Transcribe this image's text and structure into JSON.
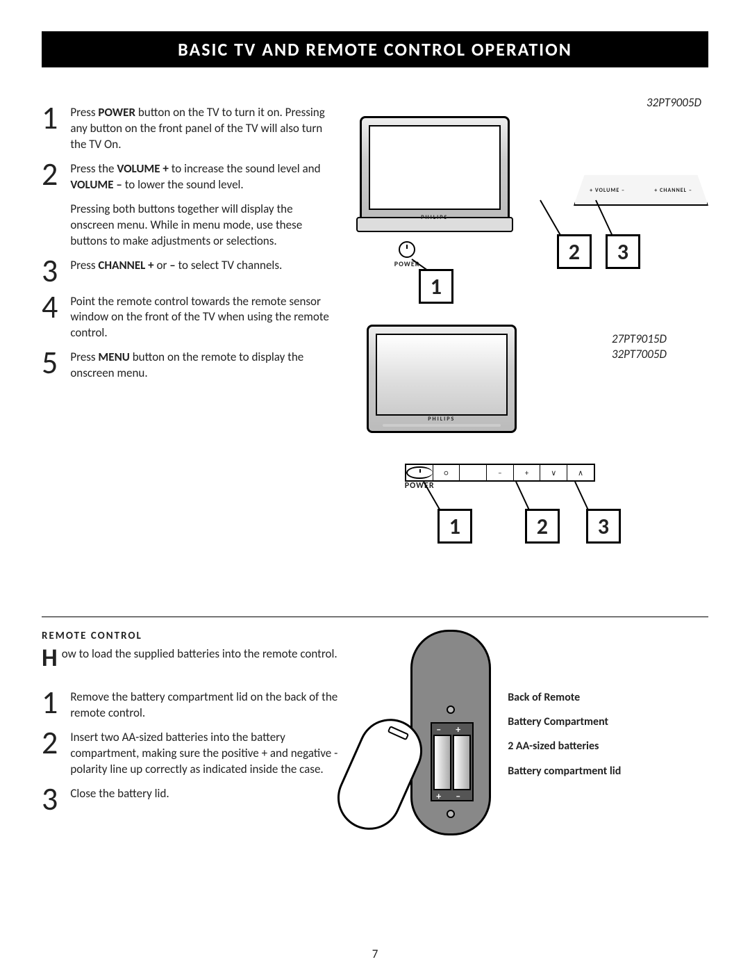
{
  "title": "BASIC TV AND REMOTE CONTROL OPERATION",
  "steps": [
    {
      "n": "1",
      "html": "Press <b>POWER</b> button on the TV to turn it on. Pressing any button on the front panel of the TV will also turn the TV On."
    },
    {
      "n": "2",
      "html": "Press the <b>VOLUME +</b> to increase the sound level and <b>VOLUME –</b> to lower the sound level."
    },
    {
      "n": "",
      "html": "Pressing both buttons together will display the onscreen menu. While in menu mode, use these buttons to make adjustments or selections."
    },
    {
      "n": "3",
      "html": "Press <b>CHANNEL  +</b> or  <b>–</b>  to select TV channels."
    },
    {
      "n": "4",
      "html": "Point the remote control towards the remote sensor window on the front of the TV when using the remote control."
    },
    {
      "n": "5",
      "html": "Press <b>MENU</b> button on the remote to display the onscreen menu."
    }
  ],
  "model_a": "32PT9005D",
  "model_b_line1": "27PT9015D",
  "model_b_line2": "32PT7005D",
  "panel_a_vol": "+  VOLUME  –",
  "panel_a_ch": "+  CHANNEL  –",
  "power_label": "POWER",
  "panel_b_symbols": [
    "⏻",
    "○",
    "",
    "–",
    "+",
    "∨",
    "∧"
  ],
  "callouts_a": {
    "c1": "1",
    "c2": "2",
    "c3": "3"
  },
  "callouts_b": {
    "c1": "1",
    "c2": "2",
    "c3": "3"
  },
  "rc_heading": "REMOTE CONTROL",
  "rc_intro_first": "H",
  "rc_intro_rest": "ow to load the supplied batteries into the remote control.",
  "rc_steps": [
    {
      "n": "1",
      "t": "Remove the battery compartment lid on the back of the remote control."
    },
    {
      "n": "2",
      "t": "Insert two AA-sized batteries into the battery compartment, making sure the positive + and negative - polarity line up correctly as indicated inside the case."
    },
    {
      "n": "3",
      "t": "Close the battery lid."
    }
  ],
  "remote_labels": {
    "a": "Back of Remote",
    "b": "Battery Compartment",
    "c": "2 AA-sized batteries",
    "d": "Battery compartment lid"
  },
  "signs": {
    "tl": "–",
    "tr": "+",
    "bl": "+",
    "br": "–"
  },
  "page_number": "7",
  "brand": "PHILIPS"
}
